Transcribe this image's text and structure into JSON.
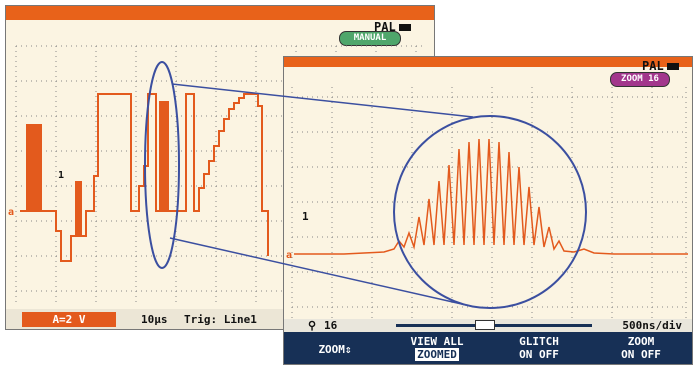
{
  "left_screen": {
    "system": "PAL",
    "mode_badge": "MANUAL",
    "channel_label": "1",
    "trigger_marker": "a",
    "channel_a_range": "A=2 V",
    "timebase": "10µs",
    "trigger": "Trig: Line1"
  },
  "right_screen": {
    "system": "PAL",
    "mode_badge": "ZOOM 16",
    "channel_label": "1",
    "zoom_label": "16",
    "timebase": "500ns/div",
    "softkeys": [
      {
        "line1": "ZOOM⇕",
        "line2": ""
      },
      {
        "line1": "VIEW ALL",
        "line2": "ZOOMED"
      },
      {
        "line1": "GLITCH",
        "line2": "ON OFF"
      },
      {
        "line1": "ZOOM",
        "line2": "ON OFF"
      }
    ]
  },
  "colors": {
    "header": "#e8621a",
    "trace": "#e35a1d",
    "menu": "#173056",
    "ellipse": "#3b4fa0"
  },
  "icons": [
    "battery-icon",
    "magnifier-icon",
    "zoom-scrollbar"
  ]
}
